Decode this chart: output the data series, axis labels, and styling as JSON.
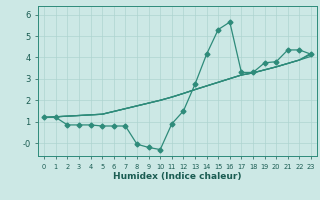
{
  "x": [
    0,
    1,
    2,
    3,
    4,
    5,
    6,
    7,
    8,
    9,
    10,
    11,
    12,
    13,
    14,
    15,
    16,
    17,
    18,
    19,
    20,
    21,
    22,
    23
  ],
  "line_main": [
    1.2,
    1.2,
    0.85,
    0.85,
    0.85,
    0.8,
    0.8,
    0.8,
    -0.05,
    -0.2,
    -0.3,
    0.9,
    1.5,
    2.75,
    4.15,
    5.3,
    5.65,
    3.3,
    3.3,
    3.75,
    3.8,
    4.35,
    4.35,
    4.15
  ],
  "line_trend1": [
    1.2,
    1.23,
    1.26,
    1.29,
    1.32,
    1.35,
    1.48,
    1.61,
    1.74,
    1.87,
    2.0,
    2.15,
    2.32,
    2.5,
    2.67,
    2.84,
    3.01,
    3.18,
    3.28,
    3.42,
    3.56,
    3.72,
    3.88,
    4.05
  ],
  "line_trend2": [
    1.2,
    1.23,
    1.26,
    1.29,
    1.32,
    1.35,
    1.48,
    1.61,
    1.74,
    1.87,
    2.0,
    2.15,
    2.32,
    2.5,
    2.67,
    2.84,
    3.01,
    3.18,
    3.28,
    3.42,
    3.56,
    3.72,
    3.88,
    4.15
  ],
  "line_trend3": [
    1.2,
    1.23,
    1.26,
    1.29,
    1.32,
    1.35,
    1.48,
    1.61,
    1.74,
    1.87,
    2.0,
    2.15,
    2.32,
    2.5,
    2.67,
    2.84,
    3.01,
    3.18,
    3.28,
    3.42,
    3.56,
    3.72,
    3.88,
    4.2
  ],
  "color": "#2e8b7a",
  "bg_color": "#cce8e5",
  "grid_color": "#aed4d0",
  "xlabel": "Humidex (Indice chaleur)",
  "ylim": [
    -0.6,
    6.4
  ],
  "xlim": [
    -0.5,
    23.5
  ],
  "yticks": [
    0,
    1,
    2,
    3,
    4,
    5,
    6
  ],
  "ytick_labels": [
    "-0",
    "1",
    "2",
    "3",
    "4",
    "5",
    "6"
  ],
  "xticks": [
    0,
    1,
    2,
    3,
    4,
    5,
    6,
    7,
    8,
    9,
    10,
    11,
    12,
    13,
    14,
    15,
    16,
    17,
    18,
    19,
    20,
    21,
    22,
    23
  ]
}
